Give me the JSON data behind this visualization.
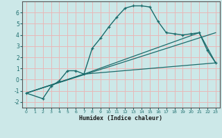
{
  "xlabel": "Humidex (Indice chaleur)",
  "bg_color": "#cce8e8",
  "grid_color": "#e8b8b8",
  "line_color": "#1a6b6b",
  "ylim": [
    -2.5,
    7.0
  ],
  "xlim": [
    -0.5,
    23.5
  ],
  "yticks": [
    -2,
    -1,
    0,
    1,
    2,
    3,
    4,
    5,
    6
  ],
  "xticks": [
    0,
    1,
    2,
    3,
    4,
    5,
    6,
    7,
    8,
    9,
    10,
    11,
    12,
    13,
    14,
    15,
    16,
    17,
    18,
    19,
    20,
    21,
    22,
    23
  ],
  "series1_x": [
    0,
    2,
    3,
    4,
    5,
    6,
    7,
    8,
    9,
    10,
    11,
    12,
    13,
    14,
    15,
    16,
    17,
    18,
    19,
    20,
    21,
    22,
    23
  ],
  "series1_y": [
    -1.2,
    -1.7,
    -0.6,
    -0.1,
    0.8,
    0.8,
    0.5,
    2.8,
    3.7,
    4.7,
    5.6,
    6.4,
    6.6,
    6.6,
    6.5,
    5.2,
    4.2,
    4.1,
    4.0,
    4.1,
    4.2,
    2.6,
    1.5
  ],
  "series2_x": [
    0,
    7,
    23
  ],
  "series2_y": [
    -1.2,
    0.5,
    1.5
  ],
  "series3_x": [
    0,
    7,
    21,
    23
  ],
  "series3_y": [
    -1.2,
    0.5,
    4.2,
    1.5
  ],
  "series4_x": [
    0,
    23
  ],
  "series4_y": [
    -1.2,
    4.2
  ]
}
